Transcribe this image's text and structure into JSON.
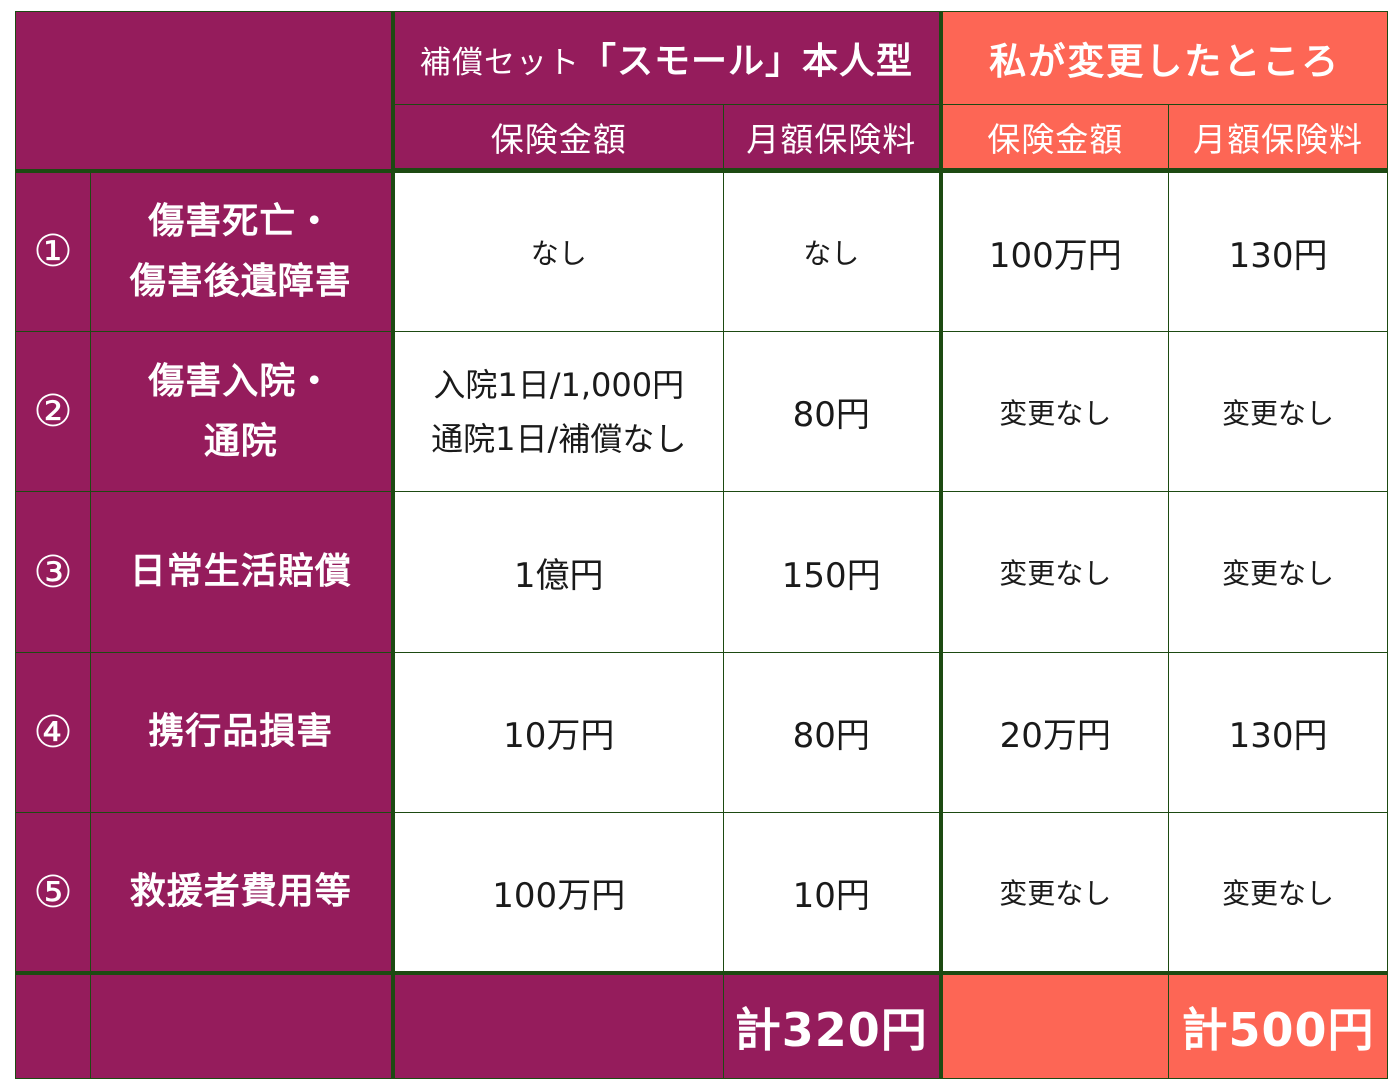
{
  "header": {
    "plan_prefix": "補償セット",
    "plan_name": "「スモール」本人型",
    "changes_title": "私が変更したところ",
    "col_amount": "保険金額",
    "col_premium": "月額保険料"
  },
  "rows": [
    {
      "num": "①",
      "label1": "傷害死亡・",
      "label2": "傷害後遺障害",
      "base_amount": "なし",
      "base_premium": "なし",
      "my_amount": "100万円",
      "my_premium": "130円"
    },
    {
      "num": "②",
      "label1": "傷害入院・",
      "label2": "通院",
      "base_amount1": "入院1日/1,000円",
      "base_amount2": "通院1日/補償なし",
      "base_premium": "80円",
      "my_amount": "変更なし",
      "my_premium": "変更なし"
    },
    {
      "num": "③",
      "label1": "日常生活賠償",
      "base_amount": "1億円",
      "base_premium": "150円",
      "my_amount": "変更なし",
      "my_premium": "変更なし"
    },
    {
      "num": "④",
      "label1": "携行品損害",
      "base_amount": "10万円",
      "base_premium": "80円",
      "my_amount": "20万円",
      "my_premium": "130円"
    },
    {
      "num": "⑤",
      "label1": "救援者費用等",
      "base_amount": "100万円",
      "base_premium": "10円",
      "my_amount": "変更なし",
      "my_premium": "変更なし"
    }
  ],
  "totals": {
    "base_total": "計320円",
    "my_total": "計500円"
  },
  "colors": {
    "plum": "#951c5c",
    "coral": "#fd6655",
    "border": "#1d4a12"
  }
}
